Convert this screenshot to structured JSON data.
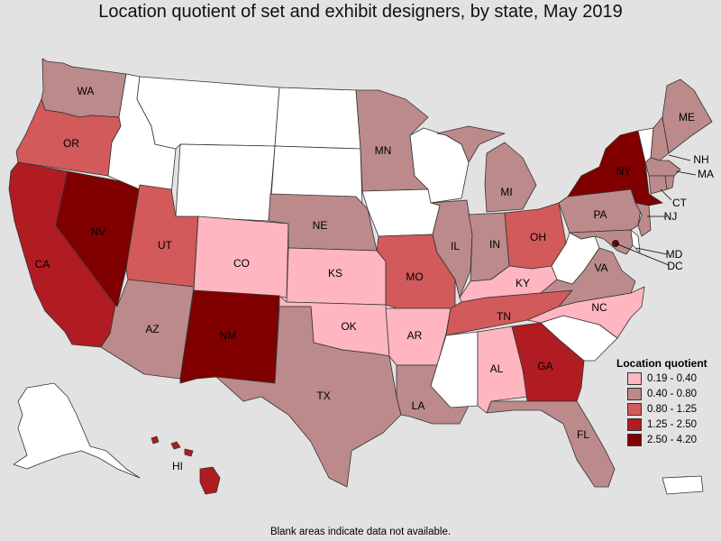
{
  "title": "Location quotient of set and exhibit designers, by state, May 2019",
  "note": "Blank areas indicate data not available.",
  "legend": {
    "title": "Location quotient",
    "items": [
      {
        "label": "0.19 - 0.40",
        "color": "#ffb6c1"
      },
      {
        "label": "0.40 - 0.80",
        "color": "#bc8a8a"
      },
      {
        "label": "0.80 - 1.25",
        "color": "#d25a5a"
      },
      {
        "label": "1.25 - 2.50",
        "color": "#b01c22"
      },
      {
        "label": "2.50 - 4.20",
        "color": "#800000"
      }
    ]
  },
  "colors": {
    "blank": "#ffffff",
    "background": "#e2e2e2",
    "border": "#333333"
  },
  "states": {
    "WA": {
      "label": "WA",
      "cls": 1
    },
    "OR": {
      "label": "OR",
      "cls": 2
    },
    "CA": {
      "label": "CA",
      "cls": 3
    },
    "NV": {
      "label": "NV",
      "cls": 4
    },
    "ID": {
      "label": "",
      "cls": null
    },
    "MT": {
      "label": "",
      "cls": null
    },
    "WY": {
      "label": "",
      "cls": null
    },
    "UT": {
      "label": "UT",
      "cls": 2
    },
    "AZ": {
      "label": "AZ",
      "cls": 1
    },
    "CO": {
      "label": "CO",
      "cls": 0
    },
    "NM": {
      "label": "NM",
      "cls": 4
    },
    "ND": {
      "label": "",
      "cls": null
    },
    "SD": {
      "label": "",
      "cls": null
    },
    "NE": {
      "label": "NE",
      "cls": 1
    },
    "KS": {
      "label": "KS",
      "cls": 0
    },
    "OK": {
      "label": "OK",
      "cls": 0
    },
    "TX": {
      "label": "TX",
      "cls": 1
    },
    "MN": {
      "label": "MN",
      "cls": 1
    },
    "IA": {
      "label": "",
      "cls": null
    },
    "MO": {
      "label": "MO",
      "cls": 2
    },
    "AR": {
      "label": "AR",
      "cls": 0
    },
    "LA": {
      "label": "LA",
      "cls": 1
    },
    "WI": {
      "label": "",
      "cls": null
    },
    "IL": {
      "label": "IL",
      "cls": 1
    },
    "MI": {
      "label": "MI",
      "cls": 1
    },
    "IN": {
      "label": "IN",
      "cls": 1
    },
    "OH": {
      "label": "OH",
      "cls": 2
    },
    "KY": {
      "label": "KY",
      "cls": 0
    },
    "TN": {
      "label": "TN",
      "cls": 2
    },
    "MS": {
      "label": "",
      "cls": null
    },
    "AL": {
      "label": "AL",
      "cls": 0
    },
    "GA": {
      "label": "GA",
      "cls": 3
    },
    "FL": {
      "label": "FL",
      "cls": 1
    },
    "SC": {
      "label": "",
      "cls": null
    },
    "NC": {
      "label": "NC",
      "cls": 0
    },
    "VA": {
      "label": "VA",
      "cls": 1
    },
    "WV": {
      "label": "",
      "cls": null
    },
    "PA": {
      "label": "PA",
      "cls": 1
    },
    "NY": {
      "label": "NY",
      "cls": 4
    },
    "VT": {
      "label": "",
      "cls": null
    },
    "NH": {
      "label": "NH",
      "cls": 1
    },
    "ME": {
      "label": "ME",
      "cls": 1
    },
    "MA": {
      "label": "MA",
      "cls": 1
    },
    "CT": {
      "label": "CT",
      "cls": 1
    },
    "RI": {
      "label": "",
      "cls": 1
    },
    "NJ": {
      "label": "NJ",
      "cls": 1
    },
    "DE": {
      "label": "",
      "cls": null
    },
    "MD": {
      "label": "MD",
      "cls": 1
    },
    "DC": {
      "label": "DC",
      "cls": 4
    },
    "AK": {
      "label": "",
      "cls": null
    },
    "HI": {
      "label": "HI",
      "cls": 3
    },
    "PR": {
      "label": "",
      "cls": null
    }
  }
}
